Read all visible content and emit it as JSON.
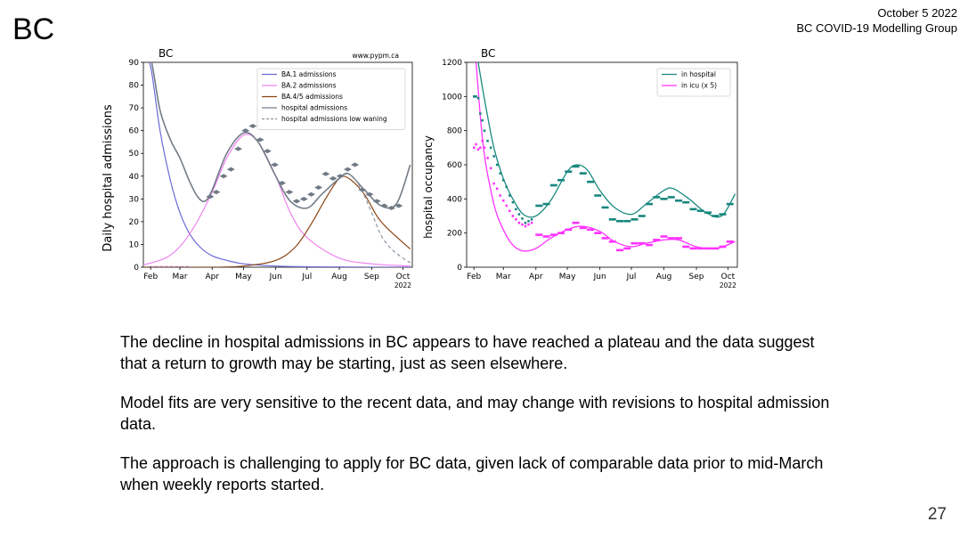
{
  "slide": {
    "title": "BC",
    "date": "October 5 2022",
    "group": "BC COVID-19 Modelling Group",
    "page_number": "27",
    "paragraphs": [
      "The decline in hospital admissions in BC appears to have reached a plateau and the data suggest that a return to growth may be starting, just as seen elsewhere.",
      "Model fits are very sensitive to the recent data, and may change with revisions to hospital admission data.",
      "The approach is challenging to apply for BC data, given lack of comparable data prior to mid-March when weekly reports started."
    ]
  },
  "chart_data": [
    {
      "type": "line",
      "title": "BC",
      "watermark": "www.pypm.ca",
      "ylabel": "Daily hospital admissions",
      "ylim": [
        0,
        90
      ],
      "yticks": [
        "0",
        "10",
        "20",
        "30",
        "40",
        "50",
        "60",
        "70",
        "80",
        "90"
      ],
      "xticks": [
        "Feb",
        "Mar",
        "Apr",
        "May",
        "Jun",
        "Jul",
        "Aug",
        "Sep",
        "Oct"
      ],
      "xyear": "2022",
      "x_domain": [
        "2022-01-25",
        "2022-10-10"
      ],
      "legend_position": "top-right",
      "series": [
        {
          "name": "BA.1 admissions",
          "color": "#6a6ad8",
          "style": "solid",
          "x": [
            "2022-01-25",
            "2022-02-01",
            "2022-02-10",
            "2022-02-20",
            "2022-03-01",
            "2022-03-10",
            "2022-03-20",
            "2022-04-01",
            "2022-04-15",
            "2022-05-01",
            "2022-06-01",
            "2022-07-01",
            "2022-08-01",
            "2022-09-01",
            "2022-10-08"
          ],
          "y": [
            120,
            88,
            60,
            38,
            24,
            15,
            9,
            5,
            3,
            1.5,
            0.5,
            0.2,
            0.1,
            0,
            0
          ]
        },
        {
          "name": "BA.2 admissions",
          "color": "#ee82ee",
          "style": "solid",
          "x": [
            "2022-01-25",
            "2022-02-15",
            "2022-03-01",
            "2022-03-15",
            "2022-04-01",
            "2022-04-15",
            "2022-05-01",
            "2022-05-15",
            "2022-06-01",
            "2022-06-15",
            "2022-07-01",
            "2022-08-01",
            "2022-09-01",
            "2022-10-08"
          ],
          "y": [
            1,
            4,
            9,
            18,
            33,
            48,
            58,
            55,
            40,
            24,
            13,
            4,
            1.5,
            0.5
          ]
        },
        {
          "name": "BA.4/5 admissions",
          "color": "#8b4513",
          "style": "solid",
          "x": [
            "2022-01-25",
            "2022-04-01",
            "2022-05-01",
            "2022-06-01",
            "2022-06-20",
            "2022-07-05",
            "2022-07-20",
            "2022-08-01",
            "2022-08-10",
            "2022-08-25",
            "2022-09-10",
            "2022-10-08"
          ],
          "y": [
            0,
            0,
            0.5,
            3,
            9,
            19,
            31,
            39,
            39,
            32,
            20,
            8
          ]
        },
        {
          "name": "hospital admissions",
          "color": "#737d87",
          "style": "solid",
          "x": [
            "2022-01-25",
            "2022-02-01",
            "2022-02-10",
            "2022-02-20",
            "2022-03-01",
            "2022-03-10",
            "2022-03-18",
            "2022-03-25",
            "2022-04-01",
            "2022-04-15",
            "2022-05-01",
            "2022-05-15",
            "2022-06-01",
            "2022-06-15",
            "2022-07-01",
            "2022-07-15",
            "2022-08-01",
            "2022-08-10",
            "2022-08-25",
            "2022-09-10",
            "2022-09-25",
            "2022-10-08"
          ],
          "y": [
            121,
            92,
            69,
            56,
            48,
            38,
            31,
            29,
            34,
            50,
            59,
            55,
            40,
            29,
            26,
            32,
            39,
            41,
            34,
            27,
            28,
            45
          ]
        },
        {
          "name": "hospital admissions low waning",
          "color": "#8c96a0",
          "style": "dashed",
          "x": [
            "2022-08-01",
            "2022-08-10",
            "2022-08-20",
            "2022-09-01",
            "2022-09-10",
            "2022-09-20",
            "2022-10-01",
            "2022-10-08"
          ],
          "y": [
            39,
            41,
            36,
            24,
            14,
            8,
            4,
            2
          ]
        }
      ],
      "points": {
        "color": "#6f7a86",
        "x": [
          "2022-03-30",
          "2022-04-05",
          "2022-04-12",
          "2022-04-19",
          "2022-04-26",
          "2022-05-03",
          "2022-05-10",
          "2022-05-17",
          "2022-05-24",
          "2022-05-31",
          "2022-06-07",
          "2022-06-14",
          "2022-06-21",
          "2022-06-28",
          "2022-07-05",
          "2022-07-12",
          "2022-07-19",
          "2022-07-26",
          "2022-08-02",
          "2022-08-09",
          "2022-08-16",
          "2022-08-23",
          "2022-08-30",
          "2022-09-06",
          "2022-09-13",
          "2022-09-20",
          "2022-09-27"
        ],
        "y": [
          31,
          33,
          40,
          43,
          52,
          60,
          62,
          56,
          51,
          45,
          37,
          33,
          29,
          30,
          32,
          35,
          41,
          39,
          40,
          43,
          45,
          34,
          32,
          29,
          27,
          26,
          27
        ]
      },
      "early_points": {
        "color": "#aa6688",
        "x": [
          "2022-02-01",
          "2022-02-06",
          "2022-02-11",
          "2022-02-16",
          "2022-02-21",
          "2022-02-26",
          "2022-03-03",
          "2022-03-08"
        ],
        "y": [
          0,
          0,
          0,
          0,
          0,
          0,
          0,
          0
        ]
      }
    },
    {
      "type": "line",
      "title": "BC",
      "ylabel": "hospital occupancy",
      "ylim": [
        0,
        1200
      ],
      "yticks": [
        "0",
        "200",
        "400",
        "600",
        "800",
        "1000",
        "1200"
      ],
      "xticks": [
        "Feb",
        "Mar",
        "Apr",
        "May",
        "Jun",
        "Jul",
        "Aug",
        "Sep",
        "Oct"
      ],
      "xyear": "2022",
      "x_domain": [
        "2022-01-25",
        "2022-10-10"
      ],
      "legend_position": "top-right",
      "series": [
        {
          "name": "in hospital",
          "color": "#1a8a80",
          "x": [
            "2022-02-05",
            "2022-02-12",
            "2022-02-20",
            "2022-03-01",
            "2022-03-10",
            "2022-03-20",
            "2022-04-01",
            "2022-04-15",
            "2022-05-01",
            "2022-05-10",
            "2022-05-20",
            "2022-06-01",
            "2022-06-15",
            "2022-07-01",
            "2022-07-15",
            "2022-08-01",
            "2022-08-10",
            "2022-08-25",
            "2022-09-10",
            "2022-09-25",
            "2022-10-08"
          ],
          "y": [
            1200,
            950,
            700,
            520,
            400,
            310,
            300,
            390,
            560,
            600,
            570,
            450,
            350,
            310,
            370,
            450,
            460,
            400,
            320,
            300,
            430
          ]
        },
        {
          "name": "in icu (x 5)",
          "color": "#ff33ff",
          "x": [
            "2022-02-03",
            "2022-02-10",
            "2022-02-20",
            "2022-03-01",
            "2022-03-10",
            "2022-03-20",
            "2022-04-01",
            "2022-04-15",
            "2022-05-01",
            "2022-05-15",
            "2022-06-01",
            "2022-06-15",
            "2022-07-01",
            "2022-07-15",
            "2022-08-01",
            "2022-08-15",
            "2022-09-01",
            "2022-09-20",
            "2022-10-08"
          ],
          "y": [
            1200,
            700,
            370,
            220,
            130,
            95,
            110,
            170,
            220,
            240,
            210,
            150,
            120,
            140,
            160,
            160,
            120,
            110,
            150
          ]
        }
      ],
      "hospital_points": {
        "color": "#17877d",
        "x": [
          "2022-02-01",
          "2022-02-03",
          "2022-02-05",
          "2022-02-07",
          "2022-02-09",
          "2022-02-11",
          "2022-02-14",
          "2022-02-17",
          "2022-02-20",
          "2022-02-23",
          "2022-02-26",
          "2022-03-01",
          "2022-03-04",
          "2022-03-07",
          "2022-03-10",
          "2022-03-13",
          "2022-03-16",
          "2022-03-19",
          "2022-03-22",
          "2022-03-25",
          "2022-03-28",
          "2022-04-04",
          "2022-04-11",
          "2022-04-18",
          "2022-04-25",
          "2022-05-02",
          "2022-05-09",
          "2022-05-16",
          "2022-05-23",
          "2022-05-30",
          "2022-06-06",
          "2022-06-13",
          "2022-06-20",
          "2022-06-27",
          "2022-07-04",
          "2022-07-11",
          "2022-07-18",
          "2022-07-25",
          "2022-08-01",
          "2022-08-08",
          "2022-08-15",
          "2022-08-22",
          "2022-08-29",
          "2022-09-05",
          "2022-09-12",
          "2022-09-19",
          "2022-09-26",
          "2022-10-03"
        ],
        "y": [
          1000,
          1000,
          990,
          900,
          860,
          800,
          740,
          700,
          650,
          600,
          550,
          510,
          470,
          420,
          380,
          340,
          310,
          285,
          260,
          270,
          280,
          360,
          370,
          480,
          510,
          560,
          590,
          550,
          500,
          420,
          350,
          280,
          270,
          270,
          280,
          300,
          370,
          410,
          400,
          410,
          390,
          380,
          340,
          330,
          320,
          300,
          310,
          370
        ]
      },
      "icu_points": {
        "color": "#ff33ff",
        "x": [
          "2022-02-01",
          "2022-02-03",
          "2022-02-05",
          "2022-02-07",
          "2022-02-09",
          "2022-02-11",
          "2022-02-14",
          "2022-02-17",
          "2022-02-20",
          "2022-02-23",
          "2022-02-26",
          "2022-03-01",
          "2022-03-04",
          "2022-03-07",
          "2022-03-10",
          "2022-03-13",
          "2022-03-16",
          "2022-03-19",
          "2022-03-22",
          "2022-03-25",
          "2022-03-28",
          "2022-04-04",
          "2022-04-11",
          "2022-04-18",
          "2022-04-25",
          "2022-05-02",
          "2022-05-09",
          "2022-05-16",
          "2022-05-23",
          "2022-05-30",
          "2022-06-06",
          "2022-06-13",
          "2022-06-20",
          "2022-06-27",
          "2022-07-04",
          "2022-07-11",
          "2022-07-18",
          "2022-07-25",
          "2022-08-01",
          "2022-08-08",
          "2022-08-15",
          "2022-08-22",
          "2022-08-29",
          "2022-09-05",
          "2022-09-12",
          "2022-09-19",
          "2022-09-26",
          "2022-10-03"
        ],
        "y": [
          700,
          720,
          690,
          700,
          740,
          700,
          640,
          580,
          490,
          460,
          420,
          390,
          360,
          330,
          300,
          280,
          260,
          250,
          240,
          250,
          260,
          190,
          180,
          190,
          200,
          220,
          260,
          230,
          220,
          200,
          170,
          150,
          100,
          110,
          140,
          140,
          130,
          160,
          180,
          170,
          170,
          120,
          110,
          110,
          110,
          110,
          120,
          150
        ]
      }
    }
  ]
}
